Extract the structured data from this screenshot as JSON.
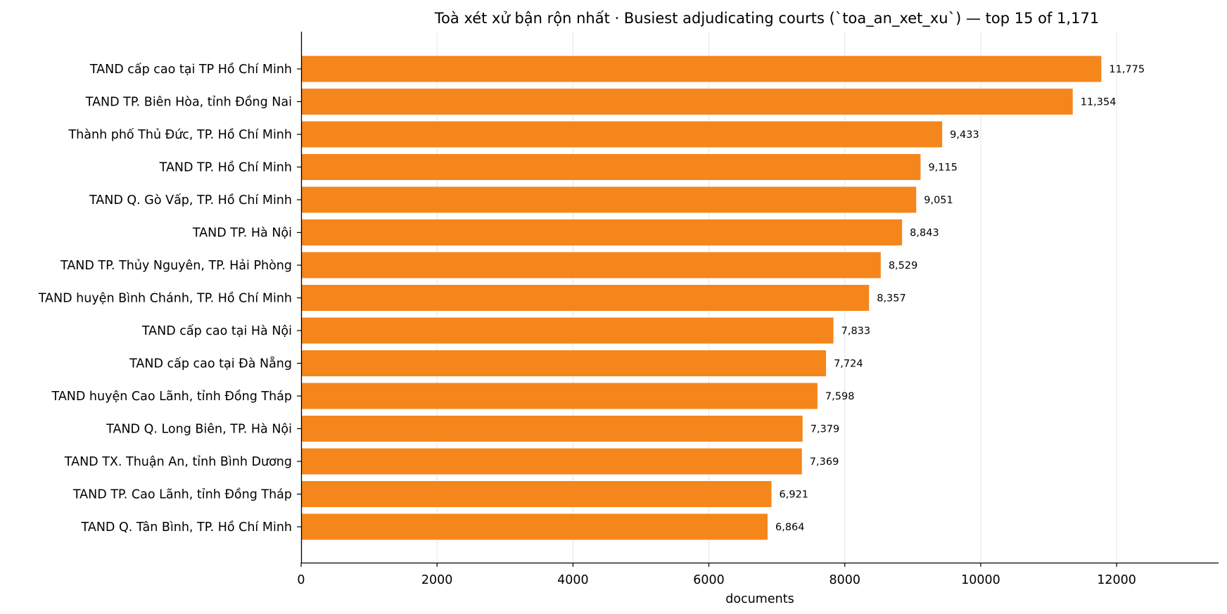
{
  "chart_data": {
    "type": "bar",
    "orientation": "horizontal",
    "title": "Toà xét xử bận rộn nhất · Busiest adjudicating courts (`toa_an_xet_xu`) — top 15 of 1,171",
    "xlabel": "documents",
    "ylabel": "",
    "xlim": [
      0,
      13500
    ],
    "xticks": [
      0,
      2000,
      4000,
      6000,
      8000,
      10000,
      12000
    ],
    "grid": "vertical",
    "bar_color": "#f5861b",
    "categories": [
      "TAND cấp cao tại TP Hồ Chí Minh",
      "TAND TP. Biên Hòa, tỉnh Đồng Nai",
      "Thành phố Thủ Đức, TP. Hồ Chí Minh",
      "TAND TP. Hồ Chí Minh",
      "TAND Q. Gò Vấp, TP. Hồ Chí Minh",
      "TAND TP. Hà Nội",
      "TAND TP. Thủy Nguyên, TP. Hải Phòng",
      "TAND huyện Bình Chánh, TP. Hồ Chí Minh",
      "TAND cấp cao tại Hà Nội",
      "TAND cấp cao tại Đà Nẵng",
      "TAND huyện Cao Lãnh, tỉnh Đồng Tháp",
      "TAND Q. Long Biên, TP. Hà Nội",
      "TAND TX. Thuận An, tỉnh Bình Dương",
      "TAND TP. Cao Lãnh, tỉnh Đồng Tháp",
      "TAND Q. Tân Bình, TP. Hồ Chí Minh"
    ],
    "values": [
      11775,
      11354,
      9433,
      9115,
      9051,
      8843,
      8529,
      8357,
      7833,
      7724,
      7598,
      7379,
      7369,
      6921,
      6864
    ],
    "value_labels": [
      "11,775",
      "11,354",
      "9,433",
      "9,115",
      "9,051",
      "8,843",
      "8,529",
      "8,357",
      "7,833",
      "7,724",
      "7,598",
      "7,379",
      "7,369",
      "6,921",
      "6,864"
    ]
  }
}
